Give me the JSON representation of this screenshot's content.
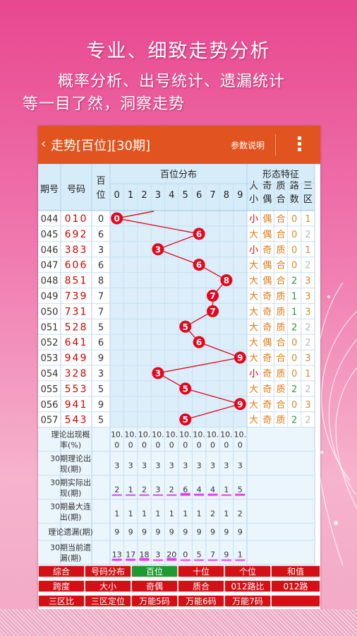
{
  "slogans": {
    "line1": "专业、细致走势分析",
    "line2": "概率分析、出号统计、遗漏统计",
    "line3": "等一目了然，洞察走势"
  },
  "appbar": {
    "back_icon": "chevron-left-icon",
    "title": "走势[百位][30期]",
    "help_label": "参数说明",
    "more_icon": "vertical-dots-icon"
  },
  "table": {
    "headers": {
      "period": "期号",
      "number": "号码",
      "hundreds": "百位",
      "distribution": "百位分布",
      "features": "形态特征",
      "digits": [
        "0",
        "1",
        "2",
        "3",
        "4",
        "5",
        "6",
        "7",
        "8",
        "9"
      ],
      "feature_cols": [
        "大小",
        "奇偶",
        "质合",
        "路数",
        "三区"
      ]
    },
    "rows": [
      {
        "period": "044",
        "number": "010",
        "h": "0",
        "bigsmall": "小",
        "oddeven": "偶",
        "primecomp": "合",
        "road": "0",
        "zone": "1"
      },
      {
        "period": "045",
        "number": "692",
        "h": "6",
        "bigsmall": "大",
        "oddeven": "偶",
        "primecomp": "合",
        "road": "0",
        "zone": "2"
      },
      {
        "period": "046",
        "number": "383",
        "h": "3",
        "bigsmall": "小",
        "oddeven": "奇",
        "primecomp": "质",
        "road": "0",
        "zone": "1"
      },
      {
        "period": "047",
        "number": "606",
        "h": "6",
        "bigsmall": "大",
        "oddeven": "偶",
        "primecomp": "合",
        "road": "0",
        "zone": "2"
      },
      {
        "period": "048",
        "number": "851",
        "h": "8",
        "bigsmall": "大",
        "oddeven": "偶",
        "primecomp": "合",
        "road": "2",
        "zone": "3"
      },
      {
        "period": "049",
        "number": "739",
        "h": "7",
        "bigsmall": "大",
        "oddeven": "奇",
        "primecomp": "质",
        "road": "1",
        "zone": "3"
      },
      {
        "period": "050",
        "number": "731",
        "h": "7",
        "bigsmall": "大",
        "oddeven": "奇",
        "primecomp": "质",
        "road": "1",
        "zone": "3"
      },
      {
        "period": "051",
        "number": "528",
        "h": "5",
        "bigsmall": "大",
        "oddeven": "奇",
        "primecomp": "质",
        "road": "2",
        "zone": "2"
      },
      {
        "period": "052",
        "number": "641",
        "h": "6",
        "bigsmall": "大",
        "oddeven": "偶",
        "primecomp": "合",
        "road": "0",
        "zone": "2"
      },
      {
        "period": "053",
        "number": "949",
        "h": "9",
        "bigsmall": "大",
        "oddeven": "奇",
        "primecomp": "合",
        "road": "0",
        "zone": "3"
      },
      {
        "period": "054",
        "number": "328",
        "h": "3",
        "bigsmall": "小",
        "oddeven": "奇",
        "primecomp": "质",
        "road": "0",
        "zone": "1"
      },
      {
        "period": "055",
        "number": "553",
        "h": "5",
        "bigsmall": "大",
        "oddeven": "奇",
        "primecomp": "质",
        "road": "2",
        "zone": "2"
      },
      {
        "period": "056",
        "number": "941",
        "h": "9",
        "bigsmall": "大",
        "oddeven": "奇",
        "primecomp": "合",
        "road": "0",
        "zone": "3"
      },
      {
        "period": "057",
        "number": "543",
        "h": "5",
        "bigsmall": "大",
        "oddeven": "奇",
        "primecomp": "质",
        "road": "2",
        "zone": "2"
      }
    ],
    "stats": [
      {
        "label": [
          "理论出现概",
          "率(%)"
        ],
        "values": [
          "10.\n0",
          "10.\n0",
          "10.\n0",
          "10.\n0",
          "10.\n0",
          "10.\n0",
          "10.\n0",
          "10.\n0",
          "10.\n0",
          "10.\n0"
        ]
      },
      {
        "label": [
          "30期理论出",
          "现(期)"
        ],
        "values": [
          "3",
          "3",
          "3",
          "3",
          "3",
          "3",
          "3",
          "3",
          "3",
          "3"
        ]
      },
      {
        "label": [
          "30期实际出",
          "现(期)"
        ],
        "values": [
          "2",
          "1",
          "2",
          "3",
          "2",
          "6",
          "4",
          "4",
          "1",
          "5"
        ]
      },
      {
        "label": [
          "30期最大连",
          "出(期)"
        ],
        "values": [
          "1",
          "1",
          "1",
          "1",
          "1",
          "1",
          "1",
          "2",
          "1",
          "2"
        ]
      },
      {
        "label": [
          "理论遗漏(期)"
        ],
        "values": [
          "9",
          "9",
          "9",
          "9",
          "9",
          "9",
          "9",
          "9",
          "9",
          "9"
        ]
      },
      {
        "label": [
          "30期当前遗",
          "漏(期)"
        ],
        "values": [
          "13",
          "17",
          "18",
          "3",
          "20",
          "0",
          "5",
          "7",
          "9",
          "1"
        ]
      }
    ]
  },
  "tabs": {
    "row1": [
      "综合",
      "号码分布",
      "百位",
      "十位",
      "个位",
      "和值"
    ],
    "row2": [
      "跨度",
      "大小",
      "奇偶",
      "质合",
      "012路比",
      "012路"
    ],
    "row3": [
      "三区比",
      "三区定位",
      "万能5码",
      "万能6码",
      "万能7码",
      ""
    ],
    "active": "百位"
  },
  "colors": {
    "appbar": "#e2541f",
    "header_bg": "#d6ecf9",
    "number_red": "#d00000",
    "ball": "#e3061c",
    "tab_red": "#d31015",
    "tab_active": "#1e9a32",
    "feature_orange": "#e07a10",
    "gray": "#b9b9b9",
    "bar_magenta": "#e83cf0"
  }
}
